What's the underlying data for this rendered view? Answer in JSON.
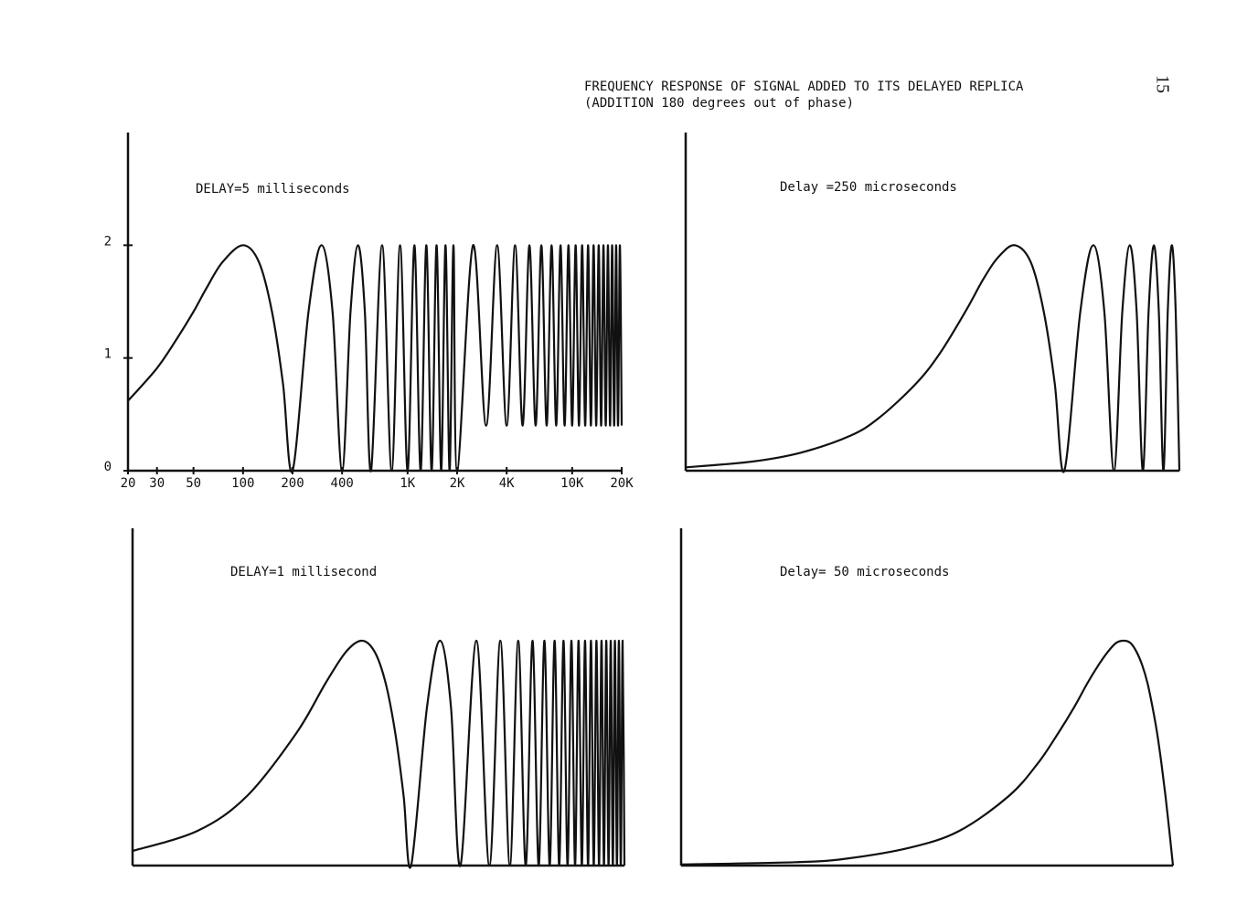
{
  "header": {
    "title": "FREQUENCY RESPONSE OF SIGNAL ADDED TO ITS DELAYED REPLICA",
    "subtitle": "(ADDITION 180 degrees out of phase)",
    "page_number": "15"
  },
  "chart_data": [
    {
      "type": "line",
      "title": "DELAY=5 milliseconds",
      "log_x": true,
      "color": "#111111",
      "xlim": [
        20,
        20000
      ],
      "ylim": [
        0,
        3
      ],
      "yticks": [
        0,
        1,
        2
      ],
      "xticks": [
        20,
        30,
        50,
        100,
        200,
        400,
        {
          "value": 1000,
          "label": "1K"
        },
        {
          "value": 2000,
          "label": "2K"
        },
        {
          "value": 4000,
          "label": "4K"
        },
        {
          "value": 10000,
          "label": "10K"
        },
        {
          "value": 20000,
          "label": "20K"
        }
      ],
      "x": [
        20,
        30,
        40,
        50,
        60,
        75,
        100,
        125,
        150,
        175,
        200,
        250,
        300,
        350,
        400,
        450,
        500,
        550,
        600,
        700,
        800,
        900,
        1000,
        1100,
        1200,
        1300,
        1400,
        1500,
        1600,
        1700,
        1800,
        1900,
        2000,
        2500,
        3000,
        3500,
        4000,
        4500,
        5000,
        5500,
        6000,
        6500,
        7000,
        7500,
        8000,
        8500,
        9000,
        9500,
        10000,
        10500,
        11000,
        11500,
        12000,
        12500,
        13000,
        13500,
        14000,
        14500,
        15000,
        15500,
        16000,
        16500,
        17000,
        17500,
        18000,
        18500,
        19000,
        19500,
        20000
      ],
      "values": [
        0.62,
        0.91,
        1.18,
        1.41,
        1.62,
        1.85,
        2,
        1.85,
        1.41,
        0.77,
        0,
        1.41,
        2,
        1.41,
        0,
        1.41,
        2,
        1.41,
        0,
        2,
        0,
        2,
        0,
        2,
        0,
        2,
        0,
        2,
        0,
        2,
        0,
        2,
        0,
        2,
        0.4,
        2,
        0.4,
        2,
        0.4,
        2,
        0.4,
        2,
        0.4,
        2,
        0.4,
        2,
        0.4,
        2,
        0.4,
        2,
        0.4,
        2,
        0.4,
        2,
        0.4,
        2,
        0.4,
        2,
        0.4,
        2,
        0.4,
        2,
        0.4,
        2,
        0.4,
        2,
        0.4,
        2,
        0.4
      ]
    },
    {
      "type": "line",
      "title": "Delay =250 microseconds",
      "log_x": true,
      "color": "#111111",
      "xlim": [
        20,
        20000
      ],
      "ylim": [
        0,
        3
      ],
      "x": [
        20,
        50,
        100,
        200,
        300,
        500,
        700,
        1000,
        1300,
        1600,
        2000,
        2500,
        3000,
        3500,
        4000,
        5000,
        6000,
        7000,
        8000,
        9000,
        10000,
        11000,
        12000,
        13000,
        14000,
        15000,
        16000,
        17000,
        18000,
        19000,
        20000
      ],
      "values": [
        0.03,
        0.08,
        0.16,
        0.31,
        0.47,
        0.77,
        1.04,
        1.41,
        1.71,
        1.9,
        2,
        1.85,
        1.41,
        0.77,
        0,
        1.41,
        2,
        1.41,
        0,
        1.41,
        2,
        1.41,
        0,
        1.41,
        2,
        1.41,
        0,
        1.41,
        2,
        1.41,
        0
      ]
    },
    {
      "type": "line",
      "title": "DELAY=1 millisecond",
      "log_x": true,
      "color": "#111111",
      "xlim": [
        20,
        20000
      ],
      "ylim": [
        0,
        3
      ],
      "x": [
        20,
        50,
        100,
        200,
        300,
        400,
        500,
        600,
        700,
        800,
        900,
        1000,
        1250,
        1500,
        1750,
        2000,
        2500,
        3000,
        3500,
        4000,
        4500,
        5000,
        5500,
        6000,
        6500,
        7000,
        7500,
        8000,
        8500,
        9000,
        9500,
        10000,
        10500,
        11000,
        11500,
        12000,
        12500,
        13000,
        13500,
        14000,
        14500,
        15000,
        15500,
        16000,
        16500,
        17000,
        17500,
        18000,
        18500,
        19000,
        19500,
        20000
      ],
      "values": [
        0.13,
        0.31,
        0.62,
        1.18,
        1.62,
        1.9,
        2,
        1.9,
        1.62,
        1.18,
        0.62,
        0,
        1.41,
        2,
        1.41,
        0,
        2,
        0,
        2,
        0,
        2,
        0,
        2,
        0,
        2,
        0,
        2,
        0,
        2,
        0,
        2,
        0,
        2,
        0,
        2,
        0,
        2,
        0,
        2,
        0,
        2,
        0,
        2,
        0,
        2,
        0,
        2,
        0,
        2,
        0,
        2,
        0
      ]
    },
    {
      "type": "line",
      "title": "Delay= 50 microseconds",
      "log_x": true,
      "color": "#111111",
      "xlim": [
        20,
        20000
      ],
      "ylim": [
        0,
        3
      ],
      "x": [
        20,
        100,
        200,
        500,
        1000,
        2000,
        3000,
        4000,
        5000,
        6000,
        7000,
        8000,
        9000,
        10000,
        11000,
        12000,
        13000,
        14000,
        15000,
        16000,
        17000,
        18000,
        19000,
        20000
      ],
      "values": [
        0.01,
        0.03,
        0.06,
        0.16,
        0.31,
        0.62,
        0.91,
        1.18,
        1.41,
        1.62,
        1.78,
        1.9,
        1.98,
        2,
        1.98,
        1.9,
        1.78,
        1.62,
        1.41,
        1.18,
        0.91,
        0.62,
        0.31,
        0
      ]
    }
  ]
}
